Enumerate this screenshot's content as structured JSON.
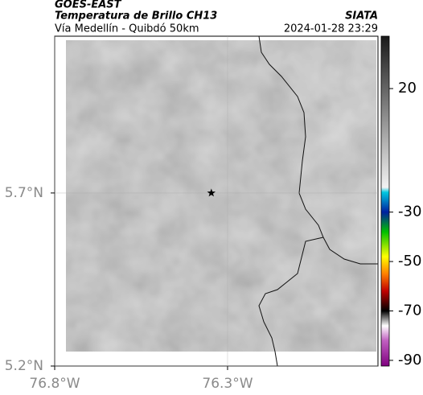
{
  "header": {
    "satellite": "GOES-EAST",
    "product": "Temperatura de Brillo CH13",
    "org": "SIATA",
    "route": "Vía Medellín - Quibdó 50km",
    "datetime": "2024-01-28 23:29"
  },
  "map": {
    "xlim": [
      -76.8,
      -75.865
    ],
    "ylim": [
      5.2,
      6.153
    ],
    "xticks": [
      {
        "value": -76.8,
        "label": "76.8°W"
      },
      {
        "value": -76.3,
        "label": "76.3°W"
      }
    ],
    "yticks": [
      {
        "value": 5.7,
        "label": "5.7°N"
      },
      {
        "value": 5.2,
        "label": "5.2°N"
      }
    ],
    "grid": true,
    "marker": {
      "lon": -76.347,
      "lat": 5.7
    }
  },
  "colorbar": {
    "lim": [
      -92.3,
      41.2
    ],
    "ticks": [
      20,
      -30,
      -50,
      -70,
      -90
    ],
    "stops": [
      {
        "value": 41.2,
        "color": "#1a1a1a"
      },
      {
        "value": -20,
        "color": "#f2f2f2"
      },
      {
        "value": -22,
        "color": "#00c8e0"
      },
      {
        "value": -30,
        "color": "#0020a0"
      },
      {
        "value": -38,
        "color": "#00c000"
      },
      {
        "value": -48,
        "color": "#ffff00"
      },
      {
        "value": -55,
        "color": "#ff8000"
      },
      {
        "value": -62,
        "color": "#c00000"
      },
      {
        "value": -70,
        "color": "#000000"
      },
      {
        "value": -76,
        "color": "#ffffff"
      },
      {
        "value": -82,
        "color": "#c060c0"
      },
      {
        "value": -92.3,
        "color": "#800080"
      }
    ]
  }
}
